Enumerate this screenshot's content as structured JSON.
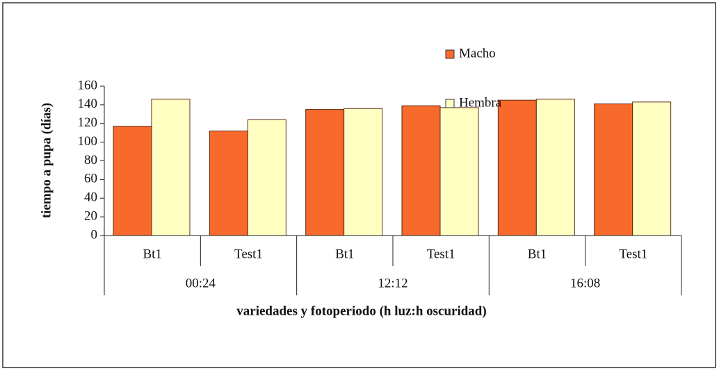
{
  "chart_data": {
    "type": "bar",
    "x_label": "variedades y fotoperiodo (h luz:h oscuridad)",
    "y_label": "tiempo a pupa (días)",
    "categories": [
      "Bt1",
      "Test1",
      "Bt1",
      "Test1",
      "Bt1",
      "Test1"
    ],
    "groups": [
      "00:24",
      "12:12",
      "16:08"
    ],
    "series": [
      {
        "name": "Macho",
        "color": "#f76a2c",
        "values": [
          117,
          112,
          135,
          139,
          145,
          141
        ]
      },
      {
        "name": "Hembra",
        "color": "#ffffc2",
        "values": [
          146,
          124,
          136,
          137,
          146,
          143
        ]
      }
    ],
    "ylim": [
      0,
      160
    ],
    "yticks": [
      0,
      20,
      40,
      60,
      80,
      100,
      120,
      140,
      160
    ],
    "grid": false,
    "legend": "top-right"
  }
}
